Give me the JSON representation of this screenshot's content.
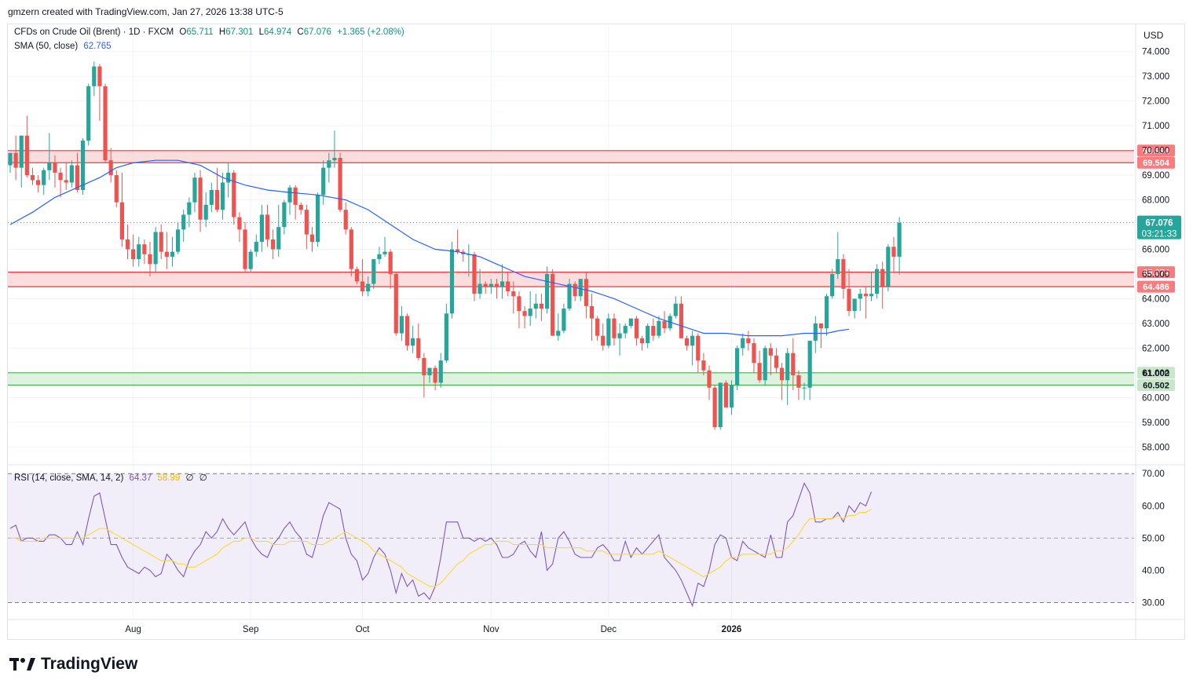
{
  "header": {
    "caption": "gmzern created with TradingView.com, Jan 27, 2026 13:38 UTC-5"
  },
  "legend": {
    "symbol": "CFDs on Crude Oil (Brent) · 1D · FXCM",
    "o_label": "O",
    "o_value": "65.711",
    "h_label": "H",
    "h_value": "67.301",
    "l_label": "L",
    "l_value": "64.974",
    "c_label": "C",
    "c_value": "67.076",
    "change": "+1.365 (+2.08%)",
    "sma_label": "SMA (50, close)",
    "sma_value": "62.765",
    "rsi_label": "RSI (14, close, SMA, 14, 2)",
    "rsi_value": "64.37",
    "rsi_sma_value": "58.99",
    "rsi_na1": "∅",
    "rsi_na2": "∅"
  },
  "currency": "USD",
  "brand": {
    "name": "TradingView"
  },
  "colors": {
    "up": "#26a69a",
    "down": "#ef5350",
    "sma": "#2962ff",
    "rsi": "#7e57c2",
    "rsi_sma": "#fdd835",
    "resistance_fill": "#fbd5d5",
    "support_fill": "#d6f0d6"
  },
  "chart_data": {
    "type": "candlestick",
    "price_axis": {
      "min": 57.5,
      "max": 74.5,
      "ticks": [
        "74.000",
        "73.000",
        "72.000",
        "71.000",
        "70.000",
        "69.000",
        "68.000",
        "67.000",
        "66.000",
        "65.000",
        "64.000",
        "63.000",
        "62.000",
        "61.000",
        "60.000",
        "59.000",
        "58.000"
      ]
    },
    "time_axis": {
      "labels": [
        {
          "label": "Aug",
          "index": 22
        },
        {
          "label": "Sep",
          "index": 43
        },
        {
          "label": "Oct",
          "index": 63
        },
        {
          "label": "Nov",
          "index": 86
        },
        {
          "label": "Dec",
          "index": 107
        },
        {
          "label": "2026",
          "index": 129
        }
      ]
    },
    "zones": [
      {
        "name": "resistance-upper",
        "top": 69.994,
        "bottom": 69.504,
        "top_label": "69.994",
        "bottom_label": "69.504",
        "color": "#f23645"
      },
      {
        "name": "resistance-lower",
        "top": 65.074,
        "bottom": 64.486,
        "top_label": "65.074",
        "bottom_label": "64.486",
        "color": "#f23645"
      },
      {
        "name": "support",
        "top": 61.002,
        "bottom": 60.502,
        "top_label": "61.002",
        "bottom_label": "60.502",
        "color": "#4caf50"
      }
    ],
    "last_price": {
      "value": 67.076,
      "label": "67.076",
      "countdown": "03:21:33"
    },
    "candles": [
      [
        69.4,
        69.9,
        69.1,
        69.9
      ],
      [
        69.9,
        70.6,
        68.8,
        69.3
      ],
      [
        69.3,
        70.6,
        68.5,
        70.6
      ],
      [
        70.6,
        71.4,
        68.9,
        69.0
      ],
      [
        69.0,
        69.3,
        68.6,
        68.8
      ],
      [
        68.8,
        69.0,
        68.3,
        68.6
      ],
      [
        68.6,
        69.3,
        68.2,
        69.2
      ],
      [
        69.2,
        70.7,
        68.8,
        69.5
      ],
      [
        69.5,
        69.8,
        68.5,
        69.1
      ],
      [
        69.1,
        69.3,
        68.1,
        68.8
      ],
      [
        68.8,
        69.5,
        68.4,
        68.7
      ],
      [
        68.7,
        69.6,
        68.5,
        69.4
      ],
      [
        69.4,
        69.9,
        68.3,
        68.4
      ],
      [
        68.4,
        70.5,
        68.2,
        70.4
      ],
      [
        70.4,
        72.7,
        70.2,
        72.6
      ],
      [
        72.6,
        73.6,
        72.2,
        73.4
      ],
      [
        73.4,
        73.5,
        71.2,
        72.6
      ],
      [
        72.6,
        72.7,
        69.5,
        69.6
      ],
      [
        69.6,
        70.1,
        68.7,
        69.0
      ],
      [
        69.0,
        69.2,
        67.7,
        67.9
      ],
      [
        67.9,
        69.1,
        66.1,
        66.4
      ],
      [
        66.4,
        67.0,
        65.6,
        66.0
      ],
      [
        66.0,
        66.6,
        65.3,
        65.6
      ],
      [
        65.6,
        66.5,
        65.3,
        66.2
      ],
      [
        66.2,
        66.4,
        65.4,
        65.8
      ],
      [
        65.8,
        66.3,
        64.9,
        65.4
      ],
      [
        65.4,
        66.9,
        65.1,
        66.7
      ],
      [
        66.7,
        67.0,
        65.6,
        65.9
      ],
      [
        65.9,
        66.7,
        65.2,
        65.7
      ],
      [
        65.7,
        66.5,
        65.3,
        65.9
      ],
      [
        65.9,
        67.1,
        65.8,
        66.8
      ],
      [
        66.8,
        67.6,
        66.3,
        67.4
      ],
      [
        67.4,
        68.1,
        66.9,
        67.9
      ],
      [
        67.9,
        69.1,
        67.5,
        68.9
      ],
      [
        68.9,
        69.2,
        66.7,
        67.2
      ],
      [
        67.2,
        68.3,
        66.9,
        67.8
      ],
      [
        67.8,
        68.7,
        67.5,
        68.4
      ],
      [
        68.4,
        69.3,
        67.5,
        67.6
      ],
      [
        67.6,
        69.1,
        67.2,
        68.7
      ],
      [
        68.7,
        69.5,
        68.1,
        69.1
      ],
      [
        69.1,
        69.2,
        67.0,
        67.3
      ],
      [
        67.3,
        67.5,
        66.3,
        66.8
      ],
      [
        66.8,
        67.1,
        65.1,
        65.2
      ],
      [
        65.2,
        66.0,
        65.1,
        65.9
      ],
      [
        65.9,
        66.6,
        65.7,
        66.3
      ],
      [
        66.3,
        67.8,
        65.9,
        67.4
      ],
      [
        67.4,
        67.8,
        66.1,
        66.4
      ],
      [
        66.4,
        66.8,
        65.6,
        66.0
      ],
      [
        66.0,
        67.8,
        65.7,
        66.9
      ],
      [
        66.9,
        68.0,
        66.6,
        67.9
      ],
      [
        67.9,
        68.6,
        67.4,
        68.5
      ],
      [
        68.5,
        68.6,
        67.2,
        67.8
      ],
      [
        67.8,
        67.9,
        67.4,
        67.6
      ],
      [
        67.6,
        67.8,
        66.0,
        66.6
      ],
      [
        66.6,
        66.9,
        65.9,
        66.3
      ],
      [
        66.3,
        68.3,
        66.1,
        68.2
      ],
      [
        68.2,
        69.6,
        67.8,
        69.3
      ],
      [
        69.3,
        69.9,
        68.7,
        69.6
      ],
      [
        69.6,
        70.8,
        69.3,
        69.7
      ],
      [
        69.7,
        69.9,
        67.5,
        67.6
      ],
      [
        67.6,
        67.9,
        66.6,
        66.8
      ],
      [
        66.8,
        66.9,
        64.9,
        65.2
      ],
      [
        65.2,
        65.3,
        64.6,
        64.7
      ],
      [
        64.7,
        65.6,
        64.1,
        64.3
      ],
      [
        64.3,
        64.9,
        64.1,
        64.6
      ],
      [
        64.6,
        65.6,
        64.4,
        65.6
      ],
      [
        65.6,
        66.1,
        65.4,
        65.8
      ],
      [
        65.8,
        66.5,
        65.7,
        65.9
      ],
      [
        65.9,
        66.0,
        64.4,
        65.0
      ],
      [
        65.0,
        65.1,
        62.5,
        62.6
      ],
      [
        62.6,
        63.7,
        62.3,
        63.3
      ],
      [
        63.3,
        63.4,
        61.9,
        62.1
      ],
      [
        62.1,
        62.9,
        61.8,
        62.4
      ],
      [
        62.4,
        63.0,
        61.5,
        61.6
      ],
      [
        61.6,
        61.8,
        60.0,
        60.9
      ],
      [
        60.9,
        61.2,
        60.6,
        61.2
      ],
      [
        61.2,
        61.3,
        60.3,
        60.6
      ],
      [
        60.6,
        61.8,
        60.4,
        61.5
      ],
      [
        61.5,
        63.8,
        61.4,
        63.4
      ],
      [
        63.4,
        66.3,
        63.2,
        66.0
      ],
      [
        66.0,
        66.8,
        65.8,
        65.9
      ],
      [
        65.9,
        66.0,
        65.5,
        65.8
      ],
      [
        65.8,
        66.2,
        64.9,
        65.8
      ],
      [
        65.8,
        65.9,
        63.9,
        64.2
      ],
      [
        64.2,
        65.2,
        64.0,
        64.6
      ],
      [
        64.6,
        64.7,
        64.2,
        64.5
      ],
      [
        64.5,
        64.8,
        64.2,
        64.6
      ],
      [
        64.6,
        64.8,
        64.0,
        64.5
      ],
      [
        64.5,
        65.4,
        64.0,
        64.7
      ],
      [
        64.7,
        65.1,
        64.1,
        64.3
      ],
      [
        64.3,
        64.7,
        63.4,
        64.1
      ],
      [
        64.1,
        64.3,
        62.8,
        63.5
      ],
      [
        63.5,
        63.7,
        62.8,
        63.3
      ],
      [
        63.3,
        64.3,
        62.9,
        63.6
      ],
      [
        63.6,
        64.2,
        63.2,
        63.8
      ],
      [
        63.8,
        64.2,
        63.1,
        63.6
      ],
      [
        63.6,
        65.3,
        63.4,
        65.0
      ],
      [
        65.0,
        65.2,
        62.5,
        62.5
      ],
      [
        62.5,
        63.4,
        62.3,
        62.7
      ],
      [
        62.7,
        63.8,
        62.6,
        63.6
      ],
      [
        63.6,
        64.8,
        63.5,
        64.6
      ],
      [
        64.6,
        64.7,
        63.9,
        64.1
      ],
      [
        64.1,
        64.8,
        63.9,
        64.8
      ],
      [
        64.8,
        65.1,
        63.2,
        63.7
      ],
      [
        63.7,
        64.2,
        62.3,
        63.2
      ],
      [
        63.2,
        63.3,
        62.3,
        62.5
      ],
      [
        62.5,
        63.0,
        61.9,
        62.1
      ],
      [
        62.1,
        63.4,
        62.0,
        63.2
      ],
      [
        63.2,
        63.4,
        62.1,
        62.4
      ],
      [
        62.4,
        63.0,
        61.7,
        62.6
      ],
      [
        62.6,
        63.0,
        62.4,
        62.9
      ],
      [
        62.9,
        63.2,
        62.8,
        63.2
      ],
      [
        63.2,
        63.3,
        62.1,
        62.4
      ],
      [
        62.4,
        62.5,
        61.9,
        62.2
      ],
      [
        62.2,
        63.0,
        62.0,
        62.9
      ],
      [
        62.9,
        63.2,
        62.3,
        62.5
      ],
      [
        62.5,
        63.3,
        62.4,
        63.1
      ],
      [
        63.1,
        63.5,
        62.6,
        62.8
      ],
      [
        62.8,
        63.4,
        62.7,
        63.3
      ],
      [
        63.3,
        64.1,
        63.2,
        63.8
      ],
      [
        63.8,
        64.1,
        62.4,
        62.4
      ],
      [
        62.4,
        62.5,
        61.9,
        62.1
      ],
      [
        62.1,
        62.7,
        61.3,
        62.5
      ],
      [
        62.5,
        62.6,
        61.0,
        61.5
      ],
      [
        61.5,
        61.8,
        60.9,
        61.1
      ],
      [
        61.1,
        61.3,
        59.9,
        60.4
      ],
      [
        60.4,
        60.5,
        58.7,
        58.8
      ],
      [
        58.8,
        60.5,
        58.7,
        60.6
      ],
      [
        60.6,
        60.7,
        59.6,
        59.6
      ],
      [
        59.6,
        60.7,
        59.3,
        60.5
      ],
      [
        60.5,
        62.1,
        60.3,
        62.0
      ],
      [
        62.0,
        62.6,
        61.7,
        62.4
      ],
      [
        62.4,
        62.7,
        61.9,
        62.2
      ],
      [
        62.2,
        62.4,
        61.0,
        61.4
      ],
      [
        61.4,
        61.9,
        60.6,
        60.7
      ],
      [
        60.7,
        62.1,
        60.5,
        62.0
      ],
      [
        62.0,
        62.2,
        60.9,
        61.7
      ],
      [
        61.7,
        62.0,
        61.0,
        61.2
      ],
      [
        61.2,
        61.4,
        59.9,
        60.7
      ],
      [
        60.7,
        62.0,
        59.7,
        61.8
      ],
      [
        61.8,
        62.4,
        60.3,
        60.9
      ],
      [
        60.9,
        61.1,
        59.9,
        60.4
      ],
      [
        60.4,
        60.6,
        59.9,
        60.4
      ],
      [
        60.4,
        62.3,
        59.9,
        62.3
      ],
      [
        62.3,
        63.3,
        61.8,
        63.0
      ],
      [
        63.0,
        63.0,
        62.0,
        62.8
      ],
      [
        62.8,
        64.2,
        62.5,
        64.1
      ],
      [
        64.1,
        65.2,
        64.0,
        65.0
      ],
      [
        65.0,
        66.7,
        64.8,
        65.6
      ],
      [
        65.6,
        65.8,
        64.0,
        64.4
      ],
      [
        64.4,
        65.2,
        63.3,
        63.5
      ],
      [
        63.5,
        64.0,
        63.2,
        64.0
      ],
      [
        64.0,
        64.4,
        63.5,
        64.2
      ],
      [
        64.2,
        64.5,
        63.2,
        64.1
      ],
      [
        64.1,
        65.1,
        63.9,
        64.2
      ],
      [
        64.2,
        65.4,
        64.0,
        65.2
      ],
      [
        65.2,
        65.5,
        63.6,
        64.5
      ],
      [
        64.5,
        66.2,
        64.3,
        66.1
      ],
      [
        66.1,
        66.5,
        65.1,
        65.7
      ],
      [
        65.7,
        67.3,
        64.97,
        67.076
      ]
    ],
    "sma50": [
      [
        0,
        67.0
      ],
      [
        4,
        67.5
      ],
      [
        8,
        68.1
      ],
      [
        12,
        68.5
      ],
      [
        16,
        68.9
      ],
      [
        19,
        69.3
      ],
      [
        22,
        69.5
      ],
      [
        26,
        69.6
      ],
      [
        30,
        69.6
      ],
      [
        34,
        69.4
      ],
      [
        38,
        68.9
      ],
      [
        42,
        68.6
      ],
      [
        46,
        68.4
      ],
      [
        50,
        68.3
      ],
      [
        55,
        68.2
      ],
      [
        60,
        68.0
      ],
      [
        64,
        67.6
      ],
      [
        68,
        67.0
      ],
      [
        72,
        66.4
      ],
      [
        76,
        66.0
      ],
      [
        80,
        65.9
      ],
      [
        84,
        65.7
      ],
      [
        88,
        65.3
      ],
      [
        92,
        64.9
      ],
      [
        96,
        64.7
      ],
      [
        100,
        64.5
      ],
      [
        104,
        64.3
      ],
      [
        108,
        64.0
      ],
      [
        112,
        63.6
      ],
      [
        116,
        63.2
      ],
      [
        120,
        62.9
      ],
      [
        124,
        62.6
      ],
      [
        128,
        62.6
      ],
      [
        132,
        62.5
      ],
      [
        134,
        62.5
      ],
      [
        138,
        62.5
      ],
      [
        142,
        62.6
      ],
      [
        146,
        62.6
      ],
      [
        148,
        62.7
      ],
      [
        150,
        62.765
      ]
    ],
    "rsi": {
      "range": [
        25,
        72
      ],
      "ticks": [
        "70.00",
        "60.00",
        "50.00",
        "40.00",
        "30.00"
      ],
      "upper_band": 70,
      "lower_band": 30,
      "mid_band": 50,
      "values": [
        53,
        54,
        49,
        50,
        50,
        49,
        49,
        51,
        51,
        50,
        48,
        48,
        52,
        48,
        56,
        63,
        64,
        56,
        48,
        48,
        44,
        41,
        40,
        39,
        41,
        40,
        38,
        39,
        45,
        43,
        40,
        38,
        43,
        46,
        48,
        52,
        50,
        52,
        56,
        53,
        51,
        53,
        55,
        50,
        47,
        45,
        44,
        48,
        50,
        53,
        55,
        52,
        50,
        45,
        44,
        50,
        57,
        61,
        60,
        59,
        50,
        45,
        43,
        37,
        39,
        44,
        47,
        45,
        40,
        33,
        39,
        35,
        37,
        32,
        33,
        31,
        35,
        44,
        55,
        55,
        55,
        50,
        50,
        49,
        50,
        49,
        50,
        48,
        44,
        44,
        45,
        48,
        49,
        46,
        44,
        52,
        40,
        42,
        50,
        52,
        49,
        45,
        44,
        44,
        44,
        47,
        48,
        46,
        43,
        43,
        49,
        44,
        47,
        45,
        47,
        49,
        51,
        44,
        42,
        40,
        37,
        33,
        29,
        36,
        35,
        40,
        48,
        51,
        50,
        44,
        43,
        49,
        47,
        46,
        45,
        44,
        51,
        44,
        44,
        55,
        57,
        62,
        67,
        64,
        55,
        55,
        56,
        56,
        58,
        55,
        60,
        58,
        61,
        60,
        64.37
      ],
      "sma_values": [
        50,
        50,
        49,
        49,
        49,
        49,
        50,
        50,
        50,
        50,
        50,
        50,
        50,
        50,
        51,
        52,
        53,
        53,
        52,
        51,
        50,
        49,
        48,
        47,
        46,
        45,
        44,
        43,
        43,
        43,
        42,
        42,
        41,
        41,
        42,
        43,
        44,
        45,
        47,
        48,
        49,
        49,
        50,
        50,
        49,
        49,
        49,
        48,
        48,
        48,
        49,
        49,
        49,
        49,
        48,
        48,
        48,
        49,
        50,
        51,
        52,
        51,
        50,
        49,
        48,
        46,
        45,
        44,
        43,
        42,
        41,
        39,
        38,
        37,
        36,
        35,
        35,
        36,
        38,
        40,
        42,
        43,
        45,
        46,
        47,
        48,
        48,
        49,
        49,
        49,
        48,
        48,
        48,
        48,
        48,
        48,
        47,
        47,
        47,
        47,
        47,
        47,
        47,
        46,
        46,
        46,
        46,
        45,
        45,
        45,
        45,
        45,
        45,
        45,
        45,
        45,
        46,
        45,
        44,
        43,
        42,
        41,
        40,
        39,
        38,
        39,
        40,
        41,
        43,
        44,
        44,
        45,
        45,
        45,
        45,
        45,
        45,
        46,
        46,
        47,
        49,
        51,
        54,
        56,
        56,
        56,
        56,
        56,
        57,
        56,
        57,
        57,
        58,
        58,
        58.99
      ]
    }
  }
}
